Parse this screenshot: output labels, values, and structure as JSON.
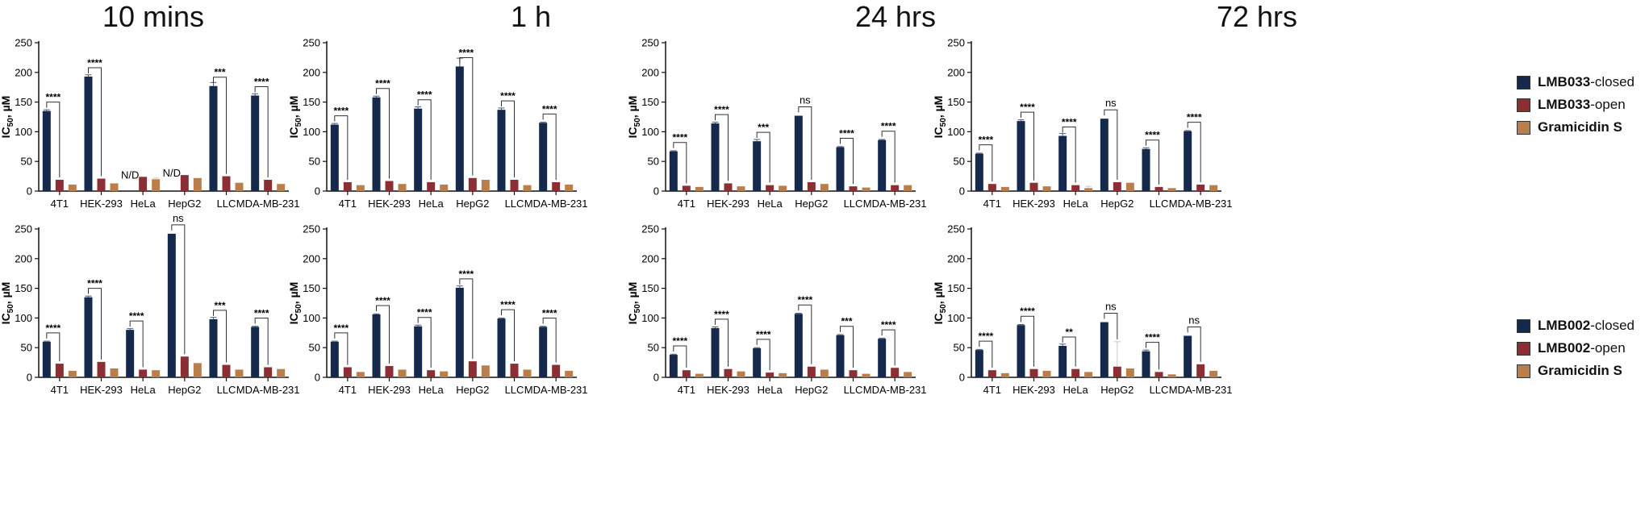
{
  "column_titles": [
    "10 mins",
    "1 h",
    "24 hrs",
    "72 hrs"
  ],
  "colors": {
    "closed": "#14294b",
    "open": "#8b2f34",
    "gramicidin": "#b87e4c"
  },
  "legend_top": [
    {
      "prefix": "LMB033",
      "suffix": "-closed",
      "color": "#14294b"
    },
    {
      "prefix": "LMB033",
      "suffix": "-open",
      "color": "#8b2f34"
    },
    {
      "prefix": "Gramicidin S",
      "suffix": "",
      "color": "#b87e4c"
    }
  ],
  "legend_bottom": [
    {
      "prefix": "LMB002",
      "suffix": "-closed",
      "color": "#14294b"
    },
    {
      "prefix": "LMB002",
      "suffix": "-open",
      "color": "#8b2f34"
    },
    {
      "prefix": "Gramicidin S",
      "suffix": "",
      "color": "#b87e4c"
    }
  ],
  "chart_data": [
    {
      "type": "bar",
      "row": 0,
      "col": 0,
      "ylabel": "IC50, µM",
      "ylim": [
        0,
        250
      ],
      "yticks": [
        0,
        50,
        100,
        150,
        200,
        250
      ],
      "categories": [
        "4T1",
        "HEK-293",
        "HeLa",
        "HepG2",
        "LLC",
        "MDA-MB-231"
      ],
      "series": [
        {
          "name": "LMB033-closed",
          "values": [
            135,
            193,
            null,
            null,
            177,
            161
          ],
          "errors": [
            2,
            3,
            0,
            0,
            6,
            3
          ]
        },
        {
          "name": "LMB033-open",
          "values": [
            19,
            21,
            24,
            27,
            25,
            19
          ],
          "errors": [
            0,
            0,
            0,
            0,
            0,
            0
          ]
        },
        {
          "name": "Gramicidin S",
          "values": [
            11,
            13,
            20,
            22,
            14,
            12
          ],
          "errors": [
            0,
            0,
            2,
            0,
            0,
            0
          ]
        }
      ],
      "annotations": [
        {
          "category": 0,
          "text": "****"
        },
        {
          "category": 1,
          "text": "****"
        },
        {
          "category": 2,
          "text": "N/D",
          "nd": true
        },
        {
          "category": 3,
          "text": "N/D",
          "nd": true
        },
        {
          "category": 4,
          "text": "***"
        },
        {
          "category": 5,
          "text": "****"
        }
      ]
    },
    {
      "type": "bar",
      "row": 0,
      "col": 1,
      "ylabel": "IC50, µM",
      "ylim": [
        0,
        250
      ],
      "yticks": [
        0,
        50,
        100,
        150,
        200,
        250
      ],
      "categories": [
        "4T1",
        "HEK-293",
        "HeLa",
        "HepG2",
        "LLC",
        "MDA-MB-231"
      ],
      "series": [
        {
          "name": "LMB033-closed",
          "values": [
            112,
            158,
            139,
            210,
            137,
            115
          ],
          "errors": [
            2,
            2,
            3,
            14,
            3,
            1
          ]
        },
        {
          "name": "LMB033-open",
          "values": [
            15,
            17,
            15,
            22,
            19,
            15
          ],
          "errors": [
            0,
            0,
            0,
            0,
            0,
            0
          ]
        },
        {
          "name": "Gramicidin S",
          "values": [
            10,
            12,
            11,
            19,
            10,
            11
          ],
          "errors": [
            0,
            0,
            0,
            0,
            0,
            0
          ]
        }
      ],
      "annotations": [
        {
          "category": 0,
          "text": "****"
        },
        {
          "category": 1,
          "text": "****"
        },
        {
          "category": 2,
          "text": "****"
        },
        {
          "category": 3,
          "text": "****"
        },
        {
          "category": 4,
          "text": "****"
        },
        {
          "category": 5,
          "text": "****"
        }
      ]
    },
    {
      "type": "bar",
      "row": 0,
      "col": 2,
      "ylabel": "IC50, µM",
      "ylim": [
        0,
        250
      ],
      "yticks": [
        0,
        50,
        100,
        150,
        200,
        250
      ],
      "categories": [
        "4T1",
        "HEK-293",
        "HeLa",
        "HepG2",
        "LLC",
        "MDA-MB-231"
      ],
      "series": [
        {
          "name": "LMB033-closed",
          "values": [
            67,
            114,
            84,
            127,
            74,
            86
          ],
          "errors": [
            1,
            2,
            3,
            0,
            1,
            1
          ]
        },
        {
          "name": "LMB033-open",
          "values": [
            9,
            13,
            10,
            15,
            8,
            10
          ],
          "errors": [
            0,
            0,
            0,
            0,
            0,
            0
          ]
        },
        {
          "name": "Gramicidin S",
          "values": [
            7,
            8,
            9,
            12,
            6,
            10
          ],
          "errors": [
            0,
            0,
            0,
            0,
            0,
            0
          ]
        }
      ],
      "annotations": [
        {
          "category": 0,
          "text": "****"
        },
        {
          "category": 1,
          "text": "****"
        },
        {
          "category": 2,
          "text": "***"
        },
        {
          "category": 3,
          "text": "ns"
        },
        {
          "category": 4,
          "text": "****"
        },
        {
          "category": 5,
          "text": "****"
        }
      ]
    },
    {
      "type": "bar",
      "row": 0,
      "col": 3,
      "ylabel": "IC50, µM",
      "ylim": [
        0,
        250
      ],
      "yticks": [
        0,
        50,
        100,
        150,
        200,
        250
      ],
      "categories": [
        "4T1",
        "HEK-293",
        "HeLa",
        "HepG2",
        "LLC",
        "MDA-MB-231"
      ],
      "series": [
        {
          "name": "LMB033-closed",
          "values": [
            63,
            118,
            93,
            122,
            71,
            101
          ],
          "errors": [
            1,
            2,
            4,
            0,
            2,
            1
          ]
        },
        {
          "name": "LMB033-open",
          "values": [
            12,
            14,
            10,
            15,
            7,
            11
          ],
          "errors": [
            0,
            0,
            0,
            0,
            0,
            0
          ]
        },
        {
          "name": "Gramicidin S",
          "values": [
            7,
            8,
            5,
            14,
            5,
            10
          ],
          "errors": [
            0,
            0,
            3,
            0,
            0,
            0
          ]
        }
      ],
      "annotations": [
        {
          "category": 0,
          "text": "****"
        },
        {
          "category": 1,
          "text": "****"
        },
        {
          "category": 2,
          "text": "****"
        },
        {
          "category": 3,
          "text": "ns"
        },
        {
          "category": 4,
          "text": "****"
        },
        {
          "category": 5,
          "text": "****"
        }
      ]
    },
    {
      "type": "bar",
      "row": 1,
      "col": 0,
      "ylabel": "IC50, µM",
      "ylim": [
        0,
        250
      ],
      "yticks": [
        0,
        50,
        100,
        150,
        200,
        250
      ],
      "categories": [
        "4T1",
        "HEK-293",
        "HeLa",
        "HepG2",
        "LLC",
        "MDA-MB-231"
      ],
      "series": [
        {
          "name": "LMB002-closed",
          "values": [
            60,
            135,
            80,
            242,
            98,
            85
          ],
          "errors": [
            1,
            2,
            2,
            0,
            3,
            1
          ]
        },
        {
          "name": "LMB002-open",
          "values": [
            23,
            26,
            13,
            35,
            21,
            17
          ],
          "errors": [
            0,
            0,
            0,
            0,
            0,
            0
          ]
        },
        {
          "name": "Gramicidin S",
          "values": [
            11,
            15,
            12,
            24,
            13,
            14
          ],
          "errors": [
            0,
            0,
            0,
            0,
            0,
            0
          ]
        }
      ],
      "annotations": [
        {
          "category": 0,
          "text": "****"
        },
        {
          "category": 1,
          "text": "****"
        },
        {
          "category": 2,
          "text": "****"
        },
        {
          "category": 3,
          "text": "ns"
        },
        {
          "category": 4,
          "text": "***"
        },
        {
          "category": 5,
          "text": "****"
        }
      ]
    },
    {
      "type": "bar",
      "row": 1,
      "col": 1,
      "ylabel": "IC50, µM",
      "ylim": [
        0,
        250
      ],
      "yticks": [
        0,
        50,
        100,
        150,
        200,
        250
      ],
      "categories": [
        "4T1",
        "HEK-293",
        "HeLa",
        "HepG2",
        "LLC",
        "MDA-MB-231"
      ],
      "series": [
        {
          "name": "LMB002-closed",
          "values": [
            60,
            106,
            86,
            151,
            99,
            85
          ],
          "errors": [
            1,
            1,
            2,
            3,
            1,
            1
          ]
        },
        {
          "name": "LMB002-open",
          "values": [
            17,
            19,
            12,
            27,
            23,
            21
          ],
          "errors": [
            0,
            0,
            0,
            0,
            0,
            0
          ]
        },
        {
          "name": "Gramicidin S",
          "values": [
            9,
            13,
            10,
            20,
            13,
            11
          ],
          "errors": [
            0,
            0,
            0,
            0,
            0,
            0
          ]
        }
      ],
      "annotations": [
        {
          "category": 0,
          "text": "****"
        },
        {
          "category": 1,
          "text": "****"
        },
        {
          "category": 2,
          "text": "****"
        },
        {
          "category": 3,
          "text": "****"
        },
        {
          "category": 4,
          "text": "****"
        },
        {
          "category": 5,
          "text": "****"
        }
      ]
    },
    {
      "type": "bar",
      "row": 1,
      "col": 2,
      "ylabel": "IC50, µM",
      "ylim": [
        0,
        250
      ],
      "yticks": [
        0,
        50,
        100,
        150,
        200,
        250
      ],
      "categories": [
        "4T1",
        "HEK-293",
        "HeLa",
        "HepG2",
        "LLC",
        "MDA-MB-231"
      ],
      "series": [
        {
          "name": "LMB002-closed",
          "values": [
            38,
            83,
            49,
            107,
            71,
            65
          ],
          "errors": [
            1,
            2,
            1,
            1,
            1,
            1
          ]
        },
        {
          "name": "LMB002-open",
          "values": [
            12,
            14,
            8,
            18,
            12,
            16
          ],
          "errors": [
            0,
            0,
            0,
            0,
            0,
            0
          ]
        },
        {
          "name": "Gramicidin S",
          "values": [
            6,
            10,
            7,
            13,
            6,
            9
          ],
          "errors": [
            0,
            0,
            0,
            0,
            0,
            0
          ]
        }
      ],
      "annotations": [
        {
          "category": 0,
          "text": "****"
        },
        {
          "category": 1,
          "text": "****"
        },
        {
          "category": 2,
          "text": "****"
        },
        {
          "category": 3,
          "text": "****"
        },
        {
          "category": 4,
          "text": "***"
        },
        {
          "category": 5,
          "text": "****"
        }
      ]
    },
    {
      "type": "bar",
      "row": 1,
      "col": 3,
      "ylabel": "IC50, µM",
      "ylim": [
        0,
        250
      ],
      "yticks": [
        0,
        50,
        100,
        150,
        200,
        250
      ],
      "categories": [
        "4T1",
        "HEK-293",
        "HeLa",
        "HepG2",
        "LLC",
        "MDA-MB-231"
      ],
      "series": [
        {
          "name": "LMB002-closed",
          "values": [
            46,
            88,
            53,
            93,
            44,
            70
          ],
          "errors": [
            1,
            1,
            3,
            0,
            2,
            0
          ]
        },
        {
          "name": "LMB002-open",
          "values": [
            12,
            14,
            14,
            18,
            9,
            22
          ],
          "errors": [
            0,
            0,
            0,
            42,
            0,
            0
          ]
        },
        {
          "name": "Gramicidin S",
          "values": [
            7,
            11,
            9,
            15,
            5,
            11
          ],
          "errors": [
            0,
            0,
            0,
            0,
            0,
            0
          ]
        }
      ],
      "annotations": [
        {
          "category": 0,
          "text": "****"
        },
        {
          "category": 1,
          "text": "****"
        },
        {
          "category": 2,
          "text": "**"
        },
        {
          "category": 3,
          "text": "ns"
        },
        {
          "category": 4,
          "text": "****"
        },
        {
          "category": 5,
          "text": "ns"
        }
      ]
    }
  ]
}
